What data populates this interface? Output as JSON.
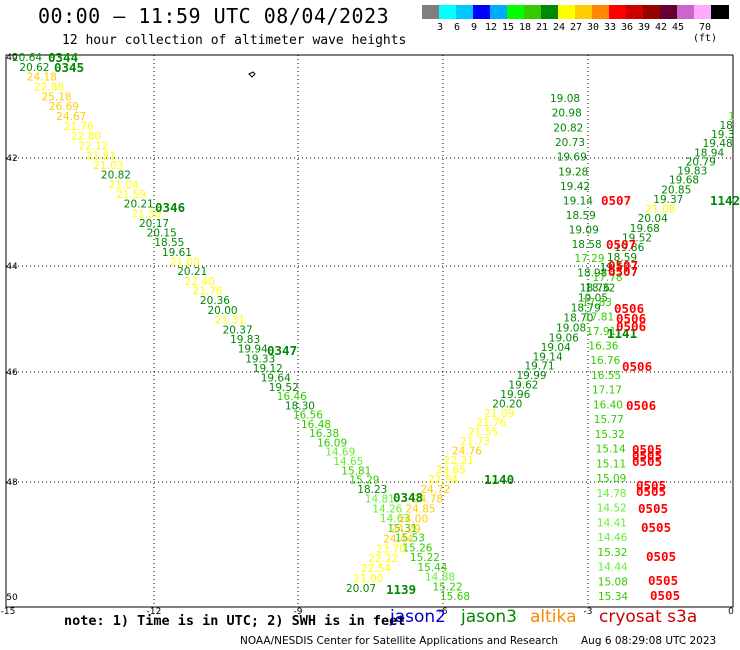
{
  "header": {
    "title": "00:00 – 11:59 UTC 08/04/2023",
    "subtitle": "12 hour collection of altimeter wave heights"
  },
  "colorbar": {
    "colors": [
      "#7f7f7f",
      "#00ffff",
      "#00c8ff",
      "#0000ff",
      "#00aaff",
      "#00ff00",
      "#33cc00",
      "#008800",
      "#ffff00",
      "#ffcc00",
      "#ff8800",
      "#ff0000",
      "#cc0000",
      "#990000",
      "#660033",
      "#cc66cc",
      "#ffaaff",
      "#000000"
    ],
    "ticks": [
      "3",
      "6",
      "9",
      "12",
      "15",
      "18",
      "21",
      "24",
      "27",
      "30",
      "33",
      "36",
      "39",
      "42",
      "45",
      "70 (ft)"
    ]
  },
  "axes": {
    "lat_labels": [
      "40",
      "42",
      "44",
      "46",
      "48",
      "50"
    ],
    "lon_labels": [
      "-15",
      "-12",
      "-9",
      "-6",
      "-3",
      "0"
    ]
  },
  "passes": [
    {
      "label": "0344",
      "color": "#008800"
    },
    {
      "label": "0345",
      "color": "#008800"
    },
    {
      "label": "0346",
      "color": "#008800"
    },
    {
      "label": "0347",
      "color": "#008800"
    },
    {
      "label": "0348",
      "color": "#008800"
    },
    {
      "label": "1139",
      "color": "#008800"
    },
    {
      "label": "1140",
      "color": "#008800"
    },
    {
      "label": "1141",
      "color": "#008800"
    },
    {
      "label": "1142",
      "color": "#008800"
    },
    {
      "label": "0505",
      "color": "#ff0000"
    },
    {
      "label": "0506",
      "color": "#ff0000"
    },
    {
      "label": "0507",
      "color": "#ff0000"
    }
  ],
  "track_a": [
    "20.64",
    "20.62",
    "24.18",
    "22.88",
    "25.18",
    "26.69",
    "24.67",
    "21.76",
    "22.80",
    "22.12",
    "21.81",
    "21.03",
    "20.82",
    "21.04",
    "21.59",
    "20.21",
    "21.50",
    "20.17",
    "20.15",
    "18.55",
    "19.61",
    "21.00",
    "20.21",
    "22.40",
    "21.76",
    "20.36",
    "20.00",
    "21.31",
    "20.37",
    "19.83",
    "19.94",
    "19.33",
    "19.12",
    "19.64",
    "19.52",
    "16.46",
    "18.30",
    "16.56",
    "16.48",
    "16.38",
    "16.09",
    "14.69",
    "14.65",
    "15.81",
    "15.29",
    "18.23",
    "14.81",
    "14.26",
    "14.63",
    "15.31",
    "15.53",
    "15.26",
    "15.22",
    "15.44",
    "14.88",
    "15.22",
    "15.68"
  ],
  "track_b": [
    "20.07",
    "21.00",
    "22.54",
    "22.22",
    "23.70",
    "24.44",
    "24.29",
    "24.00",
    "24.85",
    "24.78",
    "24.72",
    "22.94",
    "23.65",
    "22.21",
    "24.76",
    "21.73",
    "21.55",
    "21.76",
    "21.09",
    "20.20",
    "19.96",
    "19.62",
    "19.99",
    "19.71",
    "19.14",
    "19.04",
    "19.06",
    "19.08",
    "18.70",
    "18.79",
    "19.05",
    "18.32",
    "17.78",
    "19.59",
    "18.59",
    "19.86",
    "19.52",
    "19.68",
    "20.04",
    "21.08",
    "19.37",
    "20.85",
    "19.68",
    "19.83",
    "20.79",
    "18.94",
    "19.48",
    "19.3",
    "18",
    "1"
  ],
  "track_c": [
    "19.08",
    "20.98",
    "20.82",
    "20.73",
    "19.69",
    "19.28",
    "19.42",
    "19.14",
    "18.59",
    "19.09",
    "18.58",
    "17.29",
    "18.98",
    "18.76",
    "17.83",
    "17.81",
    "17.91",
    "16.36",
    "16.76",
    "16.55",
    "17.17",
    "16.40",
    "15.77",
    "15.32",
    "15.14",
    "15.11",
    "15.09",
    "14.78",
    "14.52",
    "14.41",
    "14.46",
    "15.32",
    "14.44",
    "15.08",
    "15.34"
  ],
  "note": {
    "text": "note: 1) Time is in UTC; 2) SWH is in feet",
    "satellites": [
      {
        "name": "jason2",
        "color": "#0000cc"
      },
      {
        "name": "jason3",
        "color": "#008800"
      },
      {
        "name": "altika",
        "color": "#ff8800"
      },
      {
        "name": "cryosat s3a",
        "color": "#cc0000"
      }
    ]
  },
  "footer": {
    "agency": "NOAA/NESDIS Center for Satellite Applications and Research",
    "generated": "Aug  6 08:29:08 UTC 2023"
  }
}
